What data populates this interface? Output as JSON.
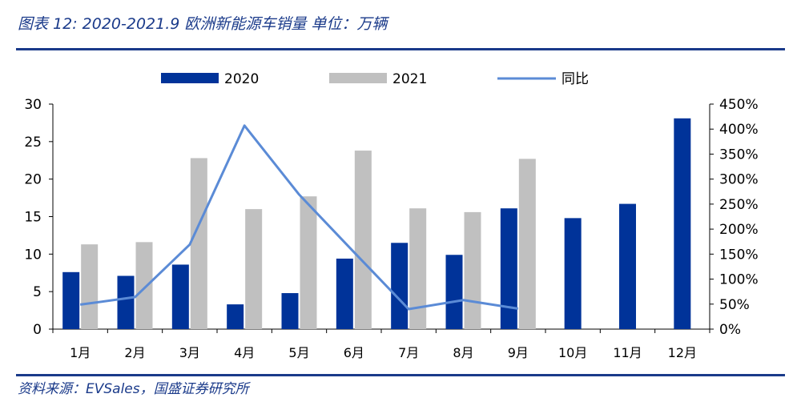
{
  "header": {
    "title": "图表 12:  2020-2021.9 欧洲新能源车销量  单位：万辆"
  },
  "footer": {
    "source": "资料来源：EVSales，国盛证券研究所"
  },
  "chart_data": {
    "type": "bar",
    "title": "2020-2021.9 欧洲新能源车销量",
    "ylabel": "",
    "xlabel": "",
    "categories": [
      "1月",
      "2月",
      "3月",
      "4月",
      "5月",
      "6月",
      "7月",
      "8月",
      "9月",
      "10月",
      "11月",
      "12月"
    ],
    "series": [
      {
        "name": "2020",
        "type": "bar",
        "axis": "left",
        "color": "#003399",
        "values": [
          7.6,
          7.1,
          8.6,
          3.3,
          4.8,
          9.4,
          11.5,
          9.9,
          16.1,
          14.8,
          16.7,
          28.1
        ]
      },
      {
        "name": "2021",
        "type": "bar",
        "axis": "left",
        "color": "#c0c0c0",
        "values": [
          11.3,
          11.6,
          22.8,
          16.0,
          17.7,
          23.8,
          16.1,
          15.6,
          22.7,
          null,
          null,
          null
        ]
      },
      {
        "name": "同比",
        "type": "line",
        "axis": "right",
        "color": "#5b8bd6",
        "values": [
          49,
          64,
          169,
          407,
          269,
          154,
          40,
          58,
          41,
          null,
          null,
          null
        ]
      }
    ],
    "ylim": [
      0,
      30
    ],
    "yticks": [
      0,
      5,
      10,
      15,
      20,
      25,
      30
    ],
    "y2lim": [
      0,
      450
    ],
    "y2ticks": [
      "0%",
      "50%",
      "100%",
      "150%",
      "200%",
      "250%",
      "300%",
      "350%",
      "400%",
      "450%"
    ],
    "grid": false,
    "legend_position": "top"
  }
}
